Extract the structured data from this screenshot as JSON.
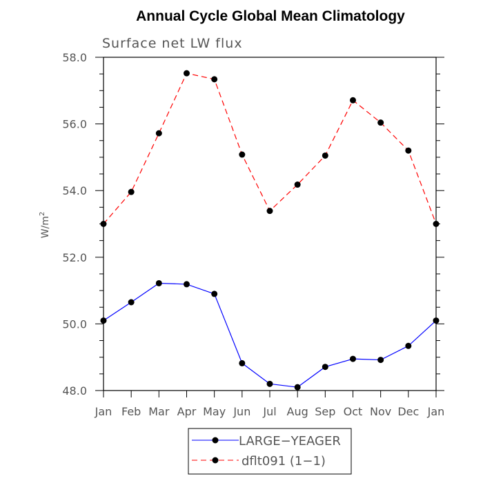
{
  "chart_data": {
    "type": "line",
    "title": "Annual Cycle Global Mean Climatology",
    "subtitle": "Surface net LW flux",
    "xlabel": "",
    "ylabel": "W/m",
    "ylabel_superscript": "2",
    "categories": [
      "Jan",
      "Feb",
      "Mar",
      "Apr",
      "May",
      "Jun",
      "Jul",
      "Aug",
      "Sep",
      "Oct",
      "Nov",
      "Dec",
      "Jan"
    ],
    "ylim": [
      48.0,
      58.0
    ],
    "yticks": [
      "48.0",
      "50.0",
      "52.0",
      "54.0",
      "56.0",
      "58.0"
    ],
    "ytick_values": [
      48.0,
      50.0,
      52.0,
      54.0,
      56.0,
      58.0
    ],
    "y_minor_step": 0.5,
    "grid": false,
    "legend_position": "bottom",
    "series": [
      {
        "name": "LARGE−YEAGER",
        "color": "#0000ff",
        "line_style": "solid",
        "marker": "filled-circle",
        "values": [
          50.1,
          50.65,
          51.22,
          51.19,
          50.9,
          48.82,
          48.2,
          48.1,
          48.71,
          48.95,
          48.92,
          49.34,
          50.1
        ]
      },
      {
        "name": "dflt091 (1−1)",
        "color": "#ff0000",
        "line_style": "dashed",
        "marker": "filled-circle",
        "values": [
          53.0,
          53.96,
          55.72,
          57.52,
          57.34,
          55.08,
          53.39,
          54.18,
          55.05,
          56.71,
          56.04,
          55.2,
          53.0
        ]
      }
    ]
  }
}
